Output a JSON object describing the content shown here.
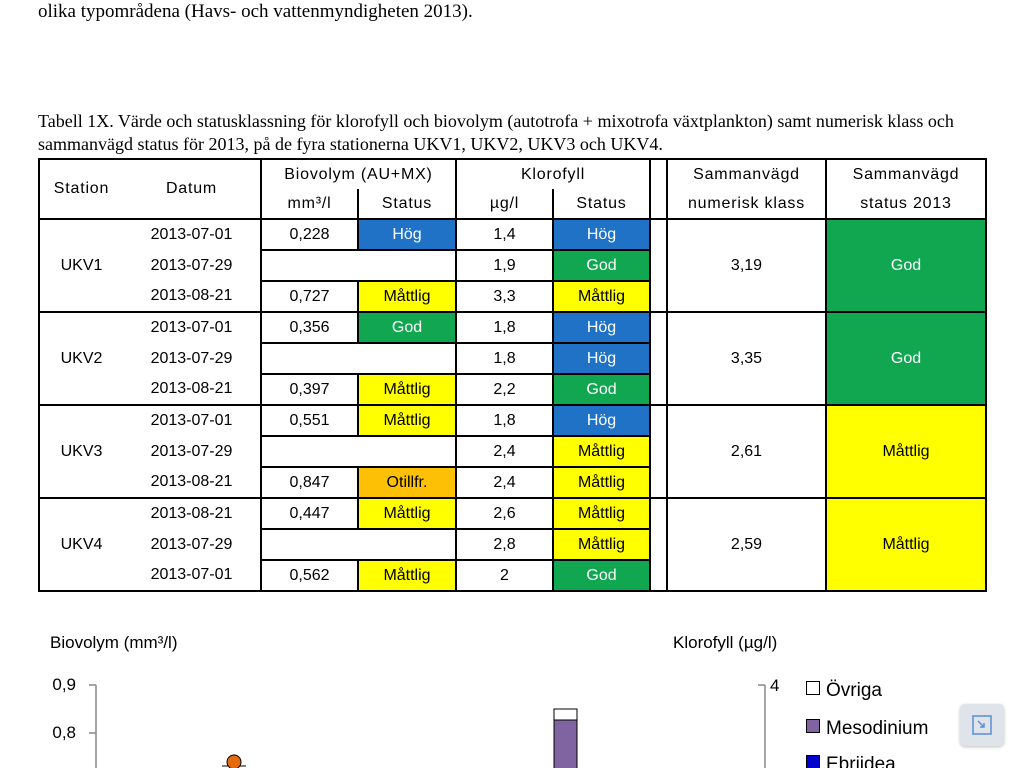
{
  "document": {
    "intro_line": "olika typområdena (Havs- och vattenmyndigheten 2013).",
    "caption": "Tabell 1X. Värde och statusklassning för klorofyll och biovolym (autotrofa + mixotrofa växtplankton) samt numerisk klass och sammanvägd status för 2013, på de fyra stationerna UKV1, UKV2, UKV3 och UKV4."
  },
  "table": {
    "headers": {
      "station": "Station",
      "datum": "Datum",
      "biovolym": "Biovolym (AU+MX)",
      "biovolym_unit": "mm³/l",
      "biovolym_status": "Status",
      "klorofyll": "Klorofyll",
      "klorofyll_unit": "µg/l",
      "klorofyll_status": "Status",
      "numerisk_1": "Sammanvägd",
      "numerisk_2": "numerisk klass",
      "status_1": "Sammanvägd",
      "status_2": "status 2013"
    },
    "colors": {
      "Hög": "#1f72c6",
      "God": "#11a751",
      "Måttlig": "#ffff00",
      "Otillfr.": "#fdc005"
    },
    "stations": [
      {
        "name": "UKV1",
        "numerisk": "3,19",
        "status": "God",
        "rows": [
          {
            "datum": "2013-07-01",
            "bio": "0,228",
            "bio_status": "Hög",
            "klo": "1,4",
            "klo_status": "Hög"
          },
          {
            "datum": "2013-07-29",
            "bio": "",
            "bio_status": "",
            "klo": "1,9",
            "klo_status": "God"
          },
          {
            "datum": "2013-08-21",
            "bio": "0,727",
            "bio_status": "Måttlig",
            "klo": "3,3",
            "klo_status": "Måttlig"
          }
        ]
      },
      {
        "name": "UKV2",
        "numerisk": "3,35",
        "status": "God",
        "rows": [
          {
            "datum": "2013-07-01",
            "bio": "0,356",
            "bio_status": "God",
            "klo": "1,8",
            "klo_status": "Hög"
          },
          {
            "datum": "2013-07-29",
            "bio": "",
            "bio_status": "",
            "klo": "1,8",
            "klo_status": "Hög"
          },
          {
            "datum": "2013-08-21",
            "bio": "0,397",
            "bio_status": "Måttlig",
            "klo": "2,2",
            "klo_status": "God"
          }
        ]
      },
      {
        "name": "UKV3",
        "numerisk": "2,61",
        "status": "Måttlig",
        "rows": [
          {
            "datum": "2013-07-01",
            "bio": "0,551",
            "bio_status": "Måttlig",
            "klo": "1,8",
            "klo_status": "Hög"
          },
          {
            "datum": "2013-07-29",
            "bio": "",
            "bio_status": "",
            "klo": "2,4",
            "klo_status": "Måttlig"
          },
          {
            "datum": "2013-08-21",
            "bio": "0,847",
            "bio_status": "Otillfr.",
            "klo": "2,4",
            "klo_status": "Måttlig"
          }
        ]
      },
      {
        "name": "UKV4",
        "numerisk": "2,59",
        "status": "Måttlig",
        "rows": [
          {
            "datum": "2013-08-21",
            "bio": "0,447",
            "bio_status": "Måttlig",
            "klo": "2,6",
            "klo_status": "Måttlig"
          },
          {
            "datum": "2013-07-29",
            "bio": "",
            "bio_status": "",
            "klo": "2,8",
            "klo_status": "Måttlig"
          },
          {
            "datum": "2013-07-01",
            "bio": "0,562",
            "bio_status": "Måttlig",
            "klo": "2",
            "klo_status": "God"
          }
        ]
      }
    ]
  },
  "chart_data": {
    "type": "bar",
    "left_axis_label": "Biovolym (mm³/l)",
    "right_axis_label": "Klorofyll (µg/l)",
    "left_ticks": [
      "0,9",
      "0,8"
    ],
    "right_ticks": [
      "4"
    ],
    "legend": [
      {
        "name": "Övriga",
        "color": "#ffffff"
      },
      {
        "name": "Mesodinium",
        "color": "#8064a2"
      },
      {
        "name": "Ebriidea",
        "color": "#0000cc"
      }
    ],
    "marker_color": "#e46c0a"
  },
  "ui": {
    "collapse_icon": "collapse-arrows-icon"
  }
}
